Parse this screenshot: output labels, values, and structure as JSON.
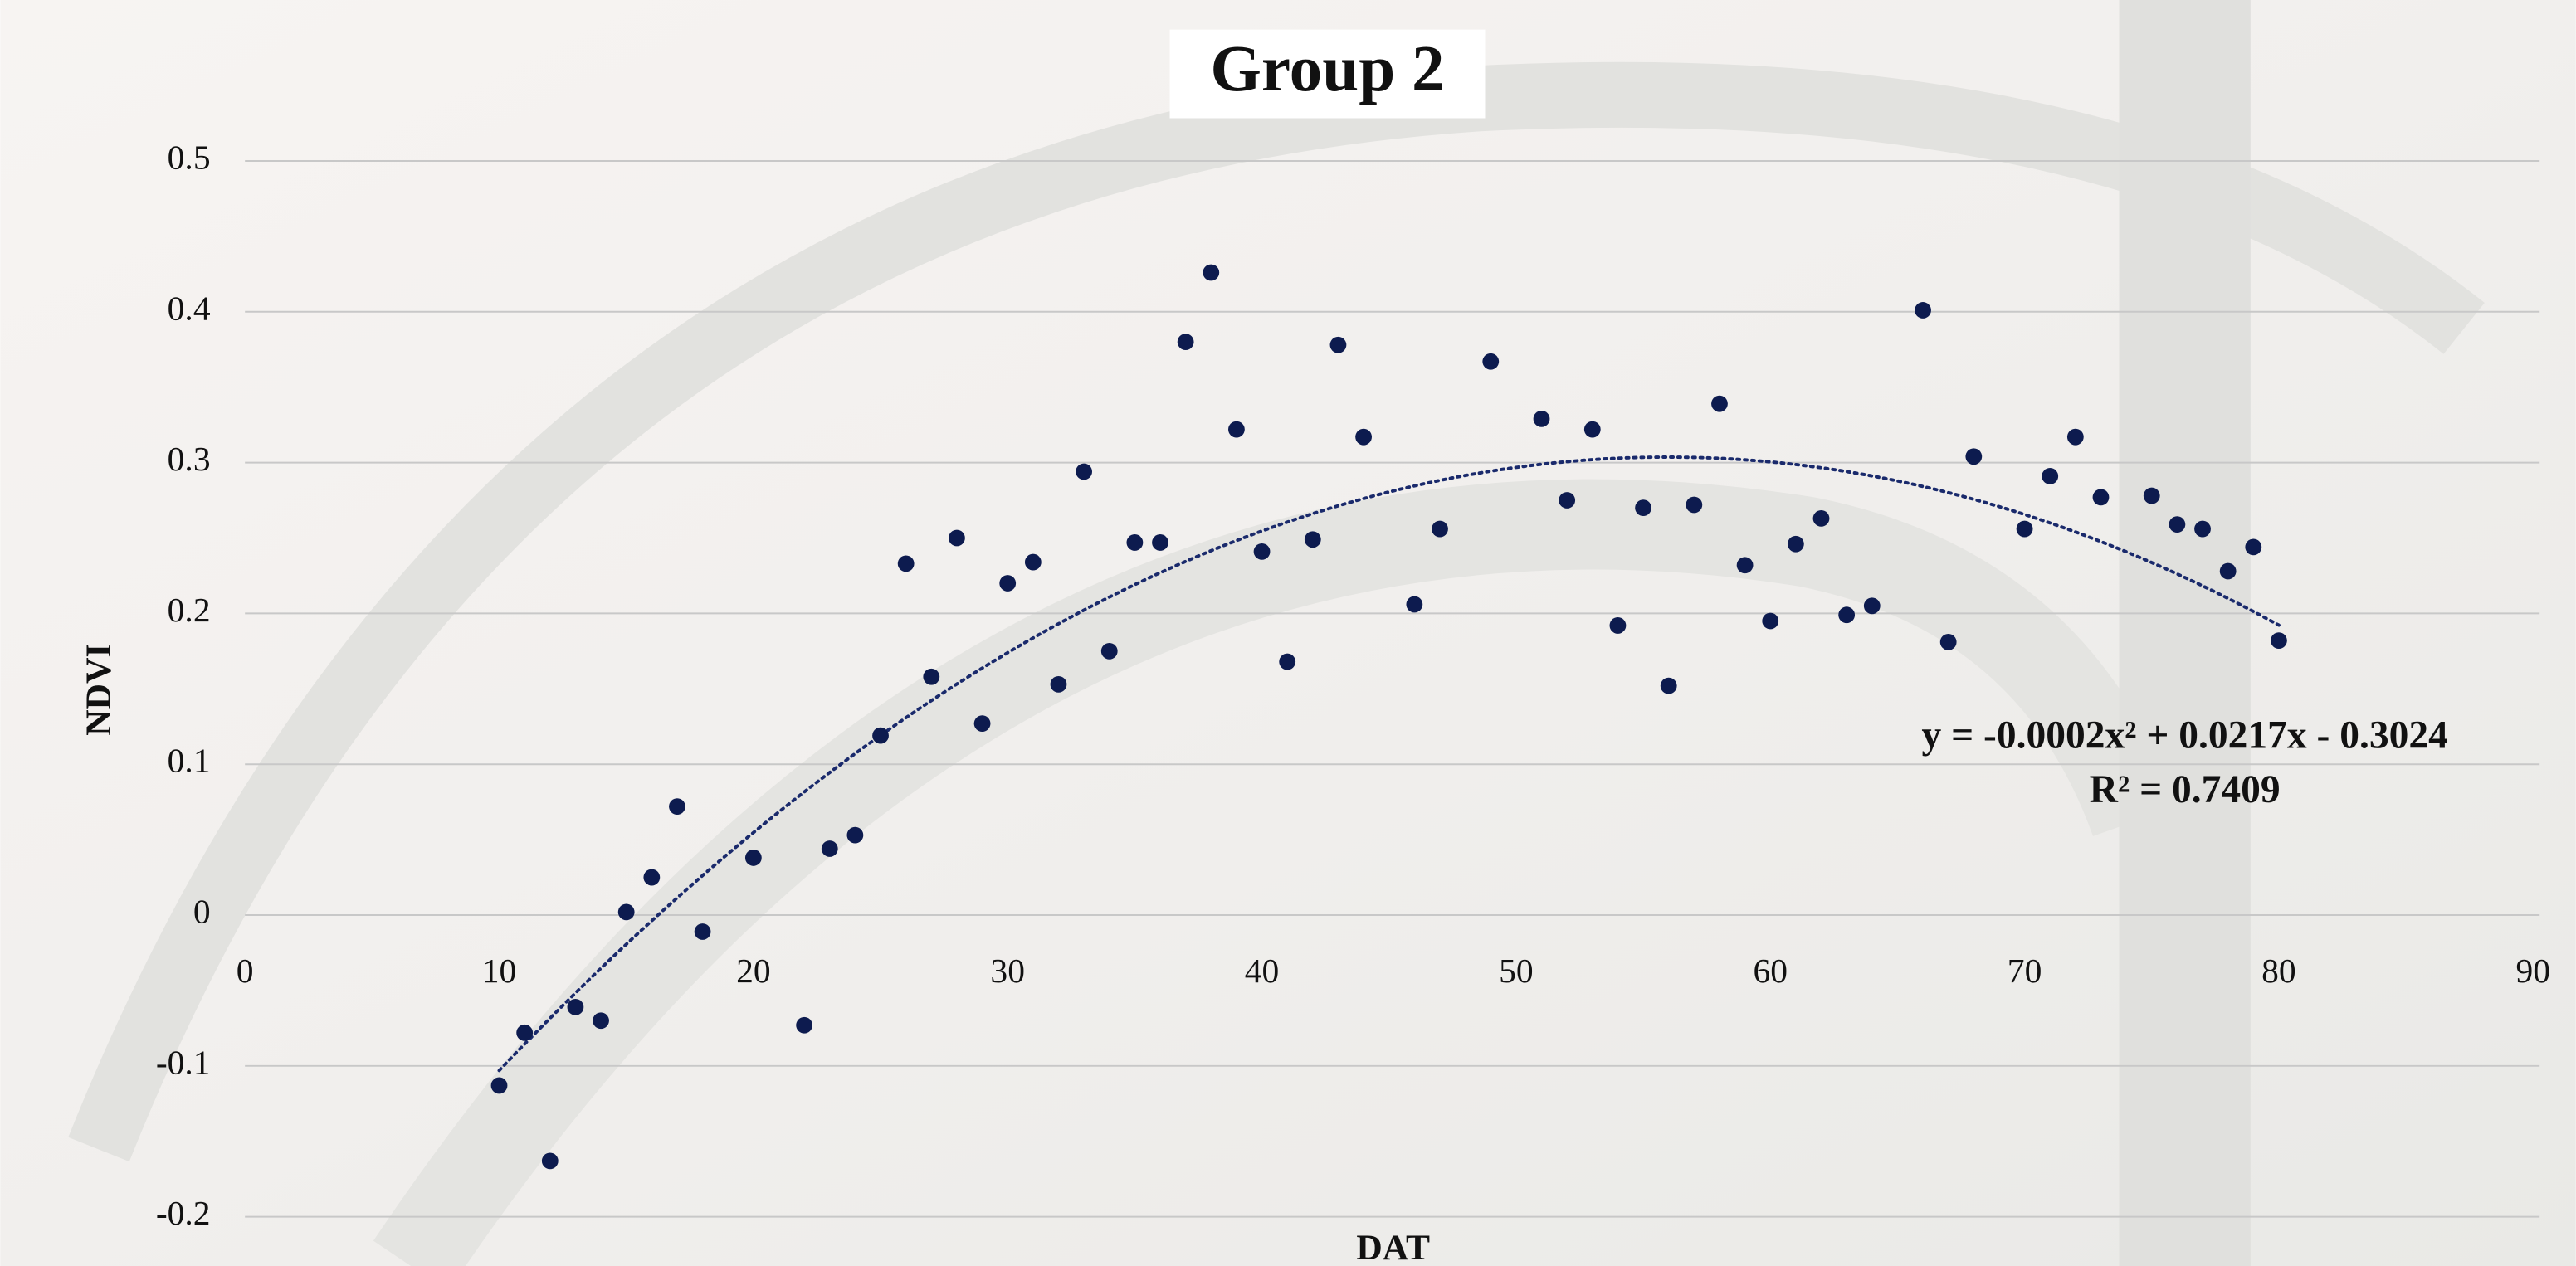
{
  "chart_data": {
    "type": "scatter",
    "title": "Group 2",
    "x_label": "DAT",
    "y_label": "NDVI",
    "x": [
      10,
      11,
      12,
      13,
      14,
      15,
      16,
      17,
      18,
      20,
      22,
      23,
      24,
      25,
      26,
      27,
      28,
      29,
      30,
      31,
      32,
      33,
      34,
      35,
      36,
      37,
      38,
      39,
      40,
      41,
      42,
      43,
      44,
      46,
      47,
      49,
      51,
      52,
      53,
      54,
      55,
      56,
      57,
      58,
      59,
      60,
      61,
      62,
      63,
      64,
      66,
      67,
      68,
      70,
      71,
      72,
      73,
      75,
      76,
      77,
      78,
      79,
      80
    ],
    "series": [
      {
        "color": "#0d1b4f",
        "values": [
          -0.113,
          -0.078,
          -0.163,
          -0.061,
          -0.07,
          0.002,
          0.025,
          0.072,
          -0.011,
          0.038,
          -0.073,
          0.044,
          0.053,
          0.119,
          0.233,
          0.158,
          0.25,
          0.127,
          0.22,
          0.234,
          0.153,
          0.294,
          0.175,
          0.247,
          0.247,
          0.38,
          0.426,
          0.322,
          0.241,
          0.168,
          0.249,
          0.378,
          0.317,
          0.206,
          0.256,
          0.367,
          0.329,
          0.275,
          0.322,
          0.192,
          0.27,
          0.152,
          0.272,
          0.339,
          0.232,
          0.195,
          0.246,
          0.263,
          0.199,
          0.205,
          0.401,
          0.181,
          0.304,
          0.256,
          0.291,
          0.317,
          0.277,
          0.278,
          0.259,
          0.256,
          0.228,
          0.244,
          0.182
        ]
      }
    ],
    "trendline": "quadratic",
    "trendline_color": "#1a2a6c",
    "annotations": [
      "y = -0.0002x² + 0.0217x - 0.3024",
      "R² = 0.7409"
    ],
    "xlim": [
      0,
      90
    ],
    "xticks": [
      0,
      10,
      20,
      30,
      40,
      50,
      60,
      70,
      80,
      90
    ],
    "ylim": [
      -0.2,
      0.5
    ],
    "yticks": [
      -0.2,
      -0.1,
      0,
      0.1,
      0.2,
      0.3,
      0.4,
      0.5
    ],
    "grid": true
  }
}
